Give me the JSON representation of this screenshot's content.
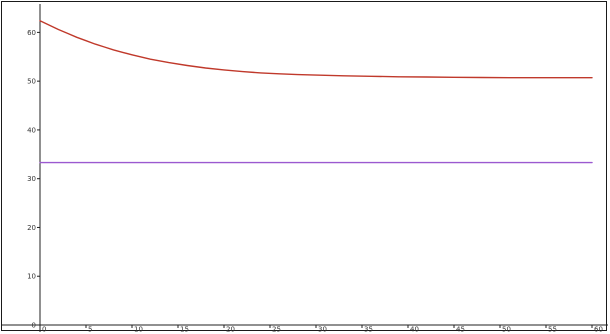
{
  "chart_data": {
    "type": "line",
    "title": "",
    "xlabel": "",
    "ylabel": "",
    "xlim": [
      0,
      60
    ],
    "ylim": [
      0,
      65
    ],
    "x_ticks": [
      0,
      5,
      10,
      15,
      20,
      25,
      30,
      35,
      40,
      45,
      50,
      55,
      60
    ],
    "y_ticks": [
      0,
      10,
      20,
      30,
      40,
      50,
      60
    ],
    "grid": false,
    "legend": "none",
    "series": [
      {
        "color": "#c0392b",
        "x": [
          0,
          1,
          2,
          3,
          4,
          5,
          6,
          7,
          8,
          9,
          10,
          12,
          14,
          16,
          18,
          20,
          22,
          24,
          26,
          28,
          30,
          33,
          36,
          39,
          42,
          45,
          48,
          51,
          54,
          57,
          60
        ],
        "y": [
          62.4,
          61.5,
          60.6,
          59.8,
          59.0,
          58.3,
          57.6,
          57.0,
          56.4,
          55.9,
          55.4,
          54.5,
          53.8,
          53.2,
          52.7,
          52.3,
          51.95,
          51.7,
          51.5,
          51.35,
          51.25,
          51.1,
          51.0,
          50.9,
          50.85,
          50.8,
          50.75,
          50.7,
          50.7,
          50.7,
          50.7
        ]
      },
      {
        "color": "#9b59d0",
        "x": [
          0,
          60
        ],
        "y": [
          33.3,
          33.3
        ]
      }
    ]
  }
}
